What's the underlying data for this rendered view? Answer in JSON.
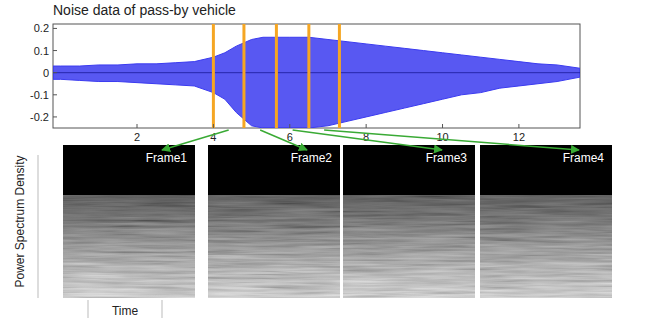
{
  "chart_data": {
    "type": "area",
    "title": "Noise data of pass-by vehicle",
    "x": [
      -0.2,
      0,
      0.5,
      1,
      1.5,
      2,
      2.5,
      3,
      3.5,
      4,
      4.3,
      4.6,
      5,
      5.3,
      5.6,
      6,
      6.5,
      7,
      7.5,
      8,
      8.5,
      9,
      9.5,
      10,
      10.5,
      11,
      11.5,
      12,
      12.5,
      13,
      13.6
    ],
    "values": [
      0.03,
      0.03,
      0.03,
      0.035,
      0.035,
      0.04,
      0.04,
      0.045,
      0.05,
      0.07,
      0.09,
      0.12,
      0.15,
      0.16,
      0.16,
      0.16,
      0.16,
      0.15,
      0.14,
      0.13,
      0.12,
      0.11,
      0.1,
      0.09,
      0.08,
      0.07,
      0.06,
      0.05,
      0.04,
      0.035,
      0.02
    ],
    "lower": [
      -0.03,
      -0.03,
      -0.035,
      -0.04,
      -0.04,
      -0.045,
      -0.05,
      -0.055,
      -0.06,
      -0.09,
      -0.12,
      -0.18,
      -0.24,
      -0.25,
      -0.25,
      -0.25,
      -0.25,
      -0.24,
      -0.22,
      -0.2,
      -0.18,
      -0.16,
      -0.14,
      -0.12,
      -0.1,
      -0.09,
      -0.07,
      -0.06,
      -0.05,
      -0.04,
      -0.02
    ],
    "color": "#3b3bf0",
    "xlim": [
      -0.2,
      13.6
    ],
    "ylim": [
      -0.25,
      0.22
    ],
    "xticks": [
      2,
      4,
      6,
      8,
      10,
      12
    ],
    "yticks": [
      -0.2,
      -0.1,
      0,
      0.1,
      0.2
    ],
    "markers": [
      4.0,
      4.8,
      5.65,
      6.5,
      7.3
    ],
    "grid": false
  },
  "panels": {
    "ylabel": "Power Spectrum Density",
    "xlabel": "Time",
    "frames": [
      "Frame1",
      "Frame2",
      "Frame3",
      "Frame4"
    ]
  }
}
